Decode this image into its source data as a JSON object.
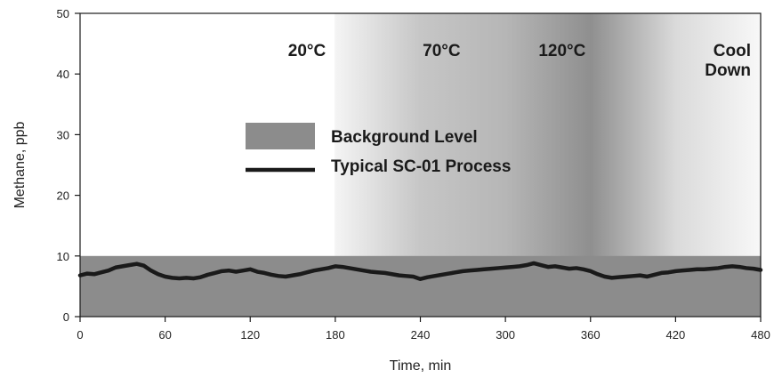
{
  "chart_data": {
    "type": "line",
    "xlabel": "Time, min",
    "ylabel": "Methane, ppb",
    "xlim": [
      0,
      480
    ],
    "ylim": [
      0,
      50
    ],
    "x_ticks": [
      0,
      60,
      120,
      180,
      240,
      300,
      360,
      420,
      480
    ],
    "y_ticks": [
      0,
      10,
      20,
      30,
      40,
      50
    ],
    "grid": false,
    "legend_position": "center",
    "phases": [
      {
        "label": "20°C",
        "x_start": 0,
        "x_end": 180,
        "shade": "#ffffff"
      },
      {
        "label": "70°C",
        "x_start": 180,
        "x_end": 300,
        "shade": "#c8c8c8"
      },
      {
        "label": "120°C",
        "x_start": 300,
        "x_end": 420,
        "shade": "#8f8f8f"
      },
      {
        "label": "Cool Down",
        "x_start": 420,
        "x_end": 480,
        "shade": "#f2f2f2"
      }
    ],
    "background_band": {
      "name": "Background Level",
      "y_min": 0,
      "y_max": 10,
      "color": "#8c8c8c"
    },
    "series": [
      {
        "name": "Typical SC-01 Process",
        "color": "#1a1a1a",
        "x": [
          0,
          5,
          10,
          15,
          20,
          25,
          30,
          35,
          40,
          45,
          50,
          55,
          60,
          65,
          70,
          75,
          80,
          85,
          90,
          95,
          100,
          105,
          110,
          115,
          120,
          125,
          130,
          135,
          140,
          145,
          150,
          155,
          160,
          165,
          170,
          175,
          180,
          185,
          190,
          195,
          200,
          205,
          210,
          215,
          220,
          225,
          230,
          235,
          240,
          245,
          250,
          255,
          260,
          265,
          270,
          275,
          280,
          285,
          290,
          295,
          300,
          305,
          310,
          315,
          320,
          325,
          330,
          335,
          340,
          345,
          350,
          355,
          360,
          365,
          370,
          375,
          380,
          385,
          390,
          395,
          400,
          405,
          410,
          415,
          420,
          425,
          430,
          435,
          440,
          445,
          450,
          455,
          460,
          465,
          470,
          475,
          480
        ],
        "y": [
          6.8,
          7.1,
          7.0,
          7.3,
          7.6,
          8.1,
          8.3,
          8.5,
          8.7,
          8.4,
          7.6,
          7.0,
          6.6,
          6.4,
          6.3,
          6.4,
          6.3,
          6.5,
          6.9,
          7.2,
          7.5,
          7.6,
          7.4,
          7.6,
          7.8,
          7.4,
          7.2,
          6.9,
          6.7,
          6.6,
          6.8,
          7.0,
          7.3,
          7.6,
          7.8,
          8.0,
          8.3,
          8.2,
          8.0,
          7.8,
          7.6,
          7.4,
          7.3,
          7.2,
          7.0,
          6.8,
          6.7,
          6.6,
          6.2,
          6.5,
          6.7,
          6.9,
          7.1,
          7.3,
          7.5,
          7.6,
          7.7,
          7.8,
          7.9,
          8.0,
          8.1,
          8.2,
          8.3,
          8.5,
          8.8,
          8.5,
          8.2,
          8.3,
          8.1,
          7.9,
          8.0,
          7.8,
          7.5,
          7.0,
          6.6,
          6.4,
          6.5,
          6.6,
          6.7,
          6.8,
          6.6,
          6.9,
          7.2,
          7.3,
          7.5,
          7.6,
          7.7,
          7.8,
          7.8,
          7.9,
          8.0,
          8.2,
          8.3,
          8.2,
          8.0,
          7.9,
          7.7
        ]
      }
    ]
  }
}
